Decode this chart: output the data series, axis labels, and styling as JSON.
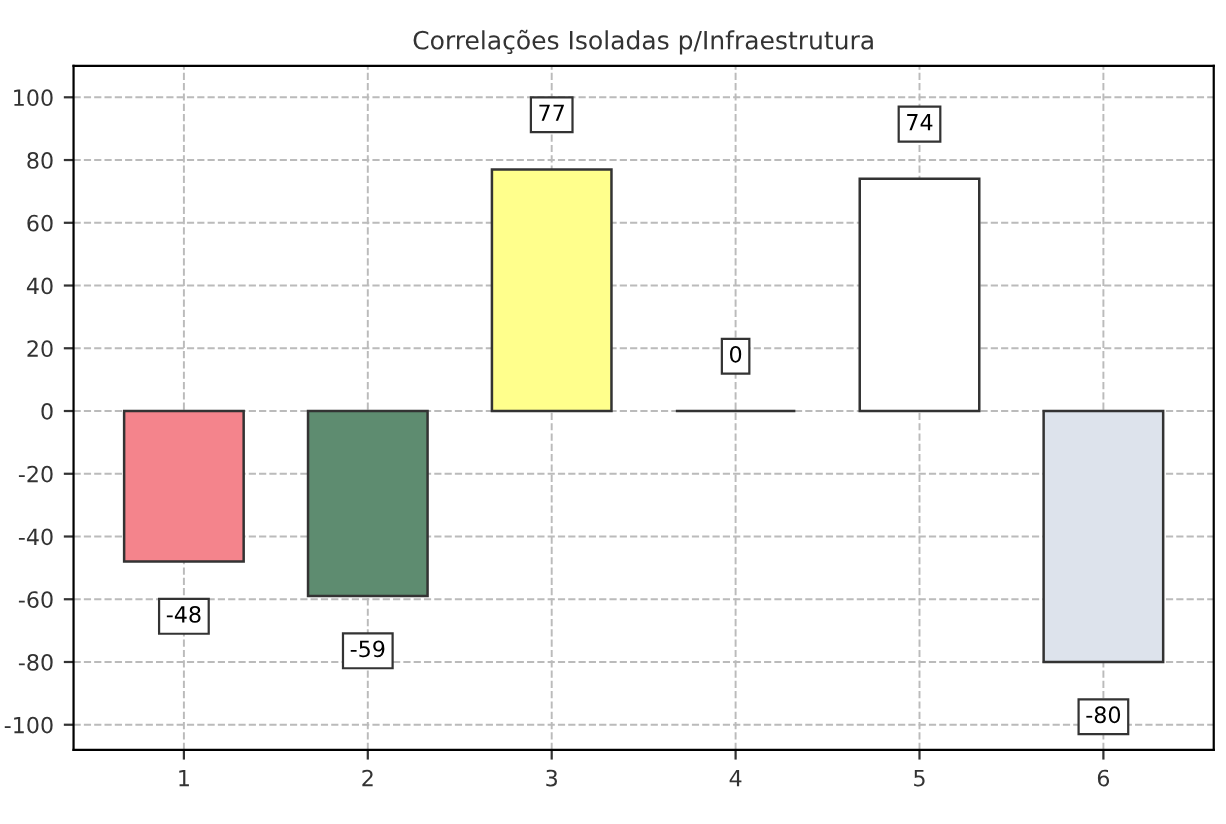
{
  "chart_data": {
    "type": "bar",
    "title": "Correlações Isoladas p/Infraestrutura",
    "categories": [
      "1",
      "2",
      "3",
      "4",
      "5",
      "6"
    ],
    "values": [
      -48,
      -59,
      77,
      0,
      74,
      -80
    ],
    "colors": [
      "#f4848c",
      "#5e8c70",
      "#ffff8c",
      "#333333",
      "#ffffff",
      "#dde3ec"
    ],
    "ylim": [
      -108,
      110
    ],
    "yticks": [
      -100,
      -80,
      -60,
      -40,
      -20,
      0,
      20,
      40,
      60,
      80,
      100
    ],
    "grid": true,
    "data_labels": true
  }
}
